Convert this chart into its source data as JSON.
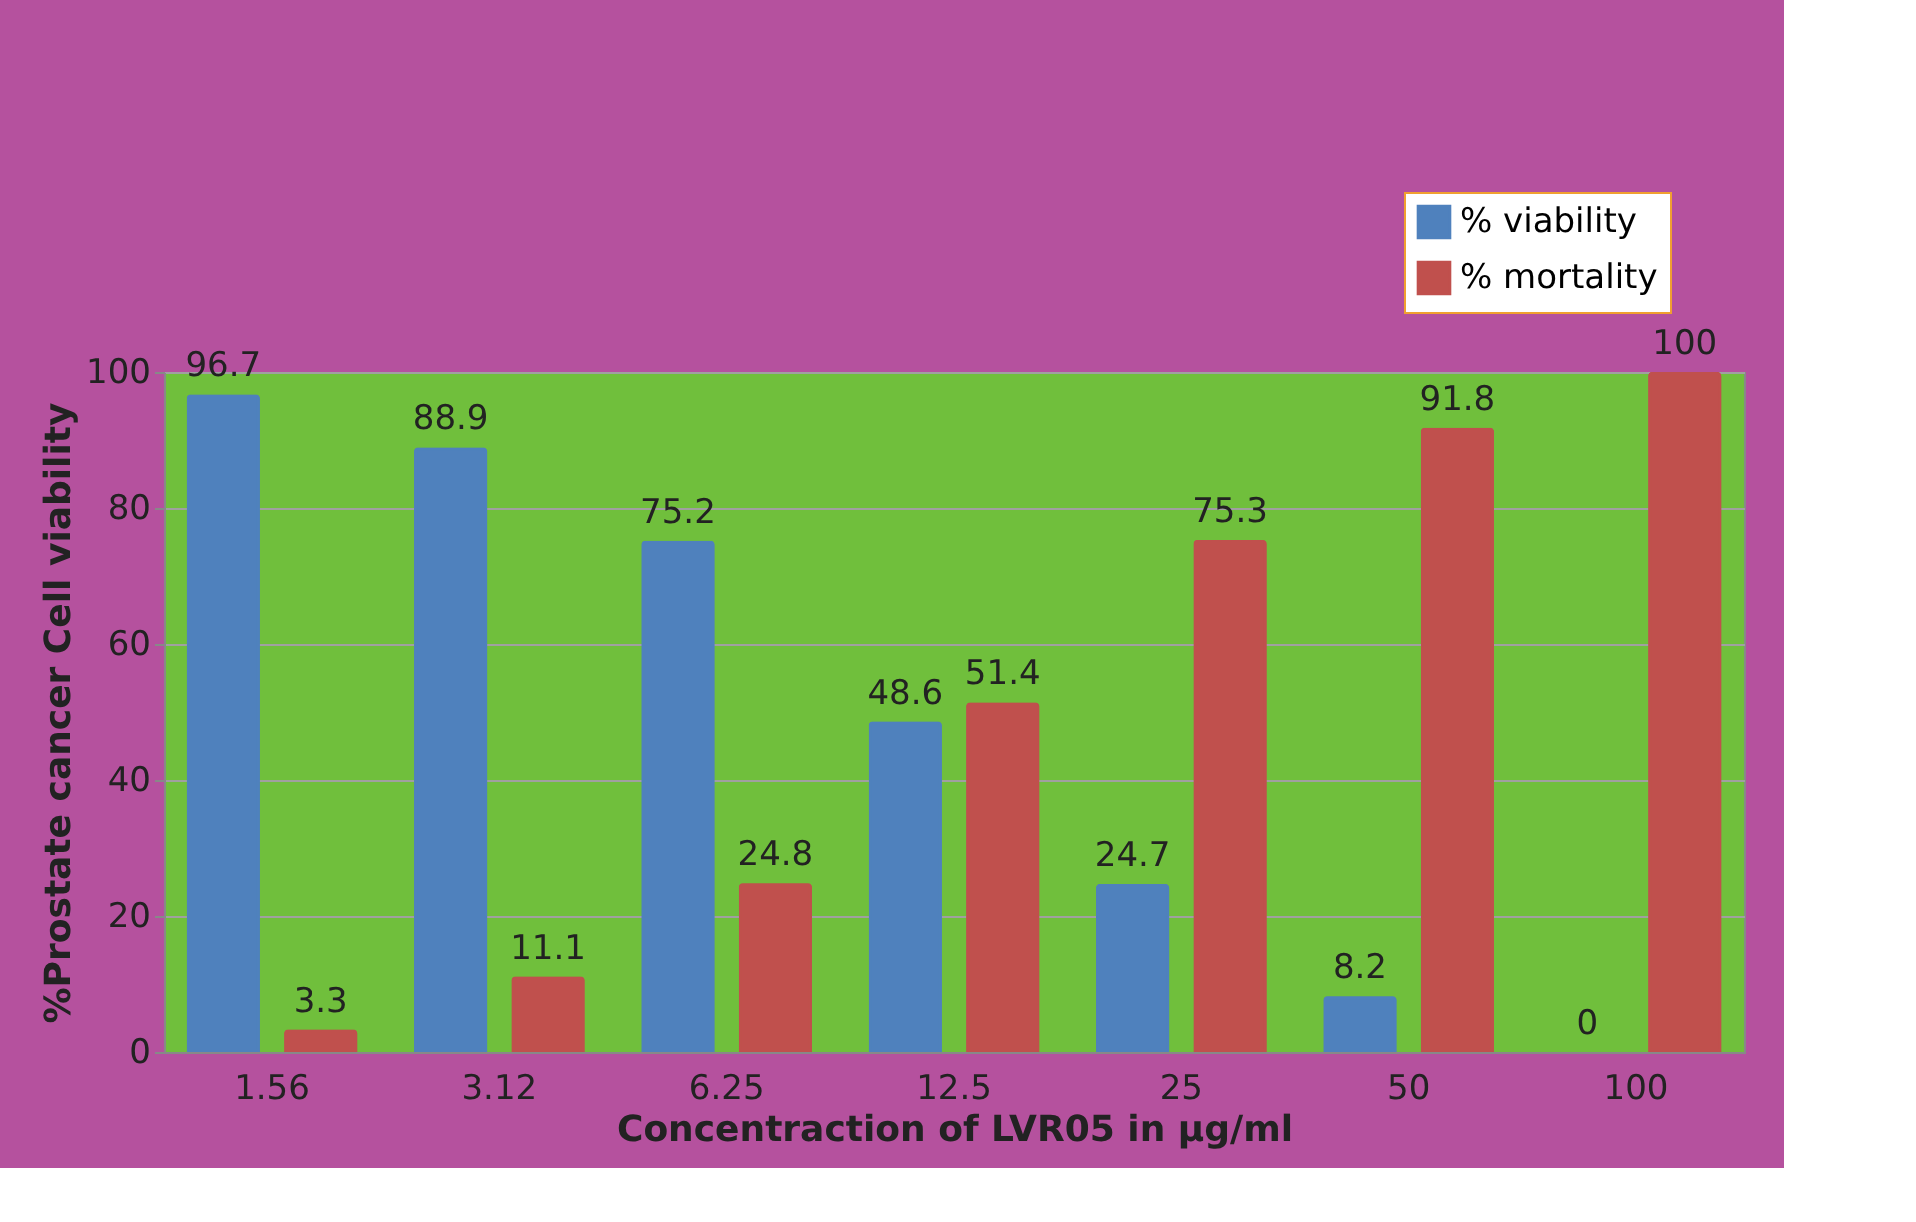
{
  "chart_data": {
    "type": "bar",
    "xlabel": "Concentraction of LVR05 in µg/ml",
    "ylabel": "%Prostate cancer Cell viability",
    "categories": [
      "1.56",
      "3.12",
      "6.25",
      "12.5",
      "25",
      "50",
      "100"
    ],
    "series": [
      {
        "name": "% viability",
        "color": "#4f81bd",
        "values": [
          96.7,
          88.9,
          75.2,
          48.6,
          24.7,
          8.2,
          0
        ]
      },
      {
        "name": "% mortality",
        "color": "#c0504d",
        "values": [
          3.3,
          11.1,
          24.8,
          51.4,
          75.3,
          91.8,
          100
        ]
      }
    ],
    "ylim": [
      0,
      100
    ],
    "yticks": [
      0,
      20,
      40,
      60,
      80,
      100
    ],
    "grid": "y",
    "legend": "top right",
    "data_labels": true
  }
}
